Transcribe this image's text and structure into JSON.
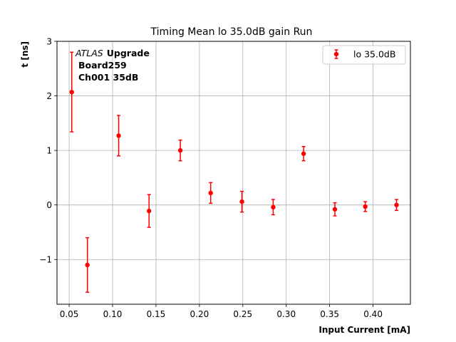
{
  "chart_data": {
    "type": "scatter",
    "title": "Timing Mean lo 35.0dB gain Run",
    "xlabel": "Input Current [mA]",
    "ylabel": "t [ns]",
    "xlim": [
      0.036,
      0.443
    ],
    "ylim": [
      -1.82,
      3.0
    ],
    "xticks": [
      "0.05",
      "0.10",
      "0.15",
      "0.20",
      "0.25",
      "0.30",
      "0.35",
      "0.40"
    ],
    "xtick_values": [
      0.05,
      0.1,
      0.15,
      0.2,
      0.25,
      0.3,
      0.35,
      0.4
    ],
    "yticks": [
      "−1",
      "0",
      "1",
      "2",
      "3"
    ],
    "ytick_values": [
      -1,
      0,
      1,
      2,
      3
    ],
    "grid": true,
    "legend_position": "top-right",
    "annotation": {
      "atlas": "ATLAS",
      "upgrade": "Upgrade",
      "line2": "Board259",
      "line3": "Ch001 35dB"
    },
    "series": [
      {
        "name": "lo 35.0dB",
        "color": "#ff0000",
        "x": [
          0.053,
          0.071,
          0.107,
          0.142,
          0.178,
          0.213,
          0.249,
          0.285,
          0.32,
          0.356,
          0.391,
          0.427
        ],
        "y": [
          2.07,
          -1.1,
          1.27,
          -0.11,
          1.0,
          0.22,
          0.06,
          -0.04,
          0.94,
          -0.08,
          -0.03,
          0.0
        ],
        "err": [
          0.73,
          0.5,
          0.37,
          0.3,
          0.19,
          0.19,
          0.19,
          0.14,
          0.13,
          0.12,
          0.09,
          0.1
        ]
      }
    ]
  }
}
